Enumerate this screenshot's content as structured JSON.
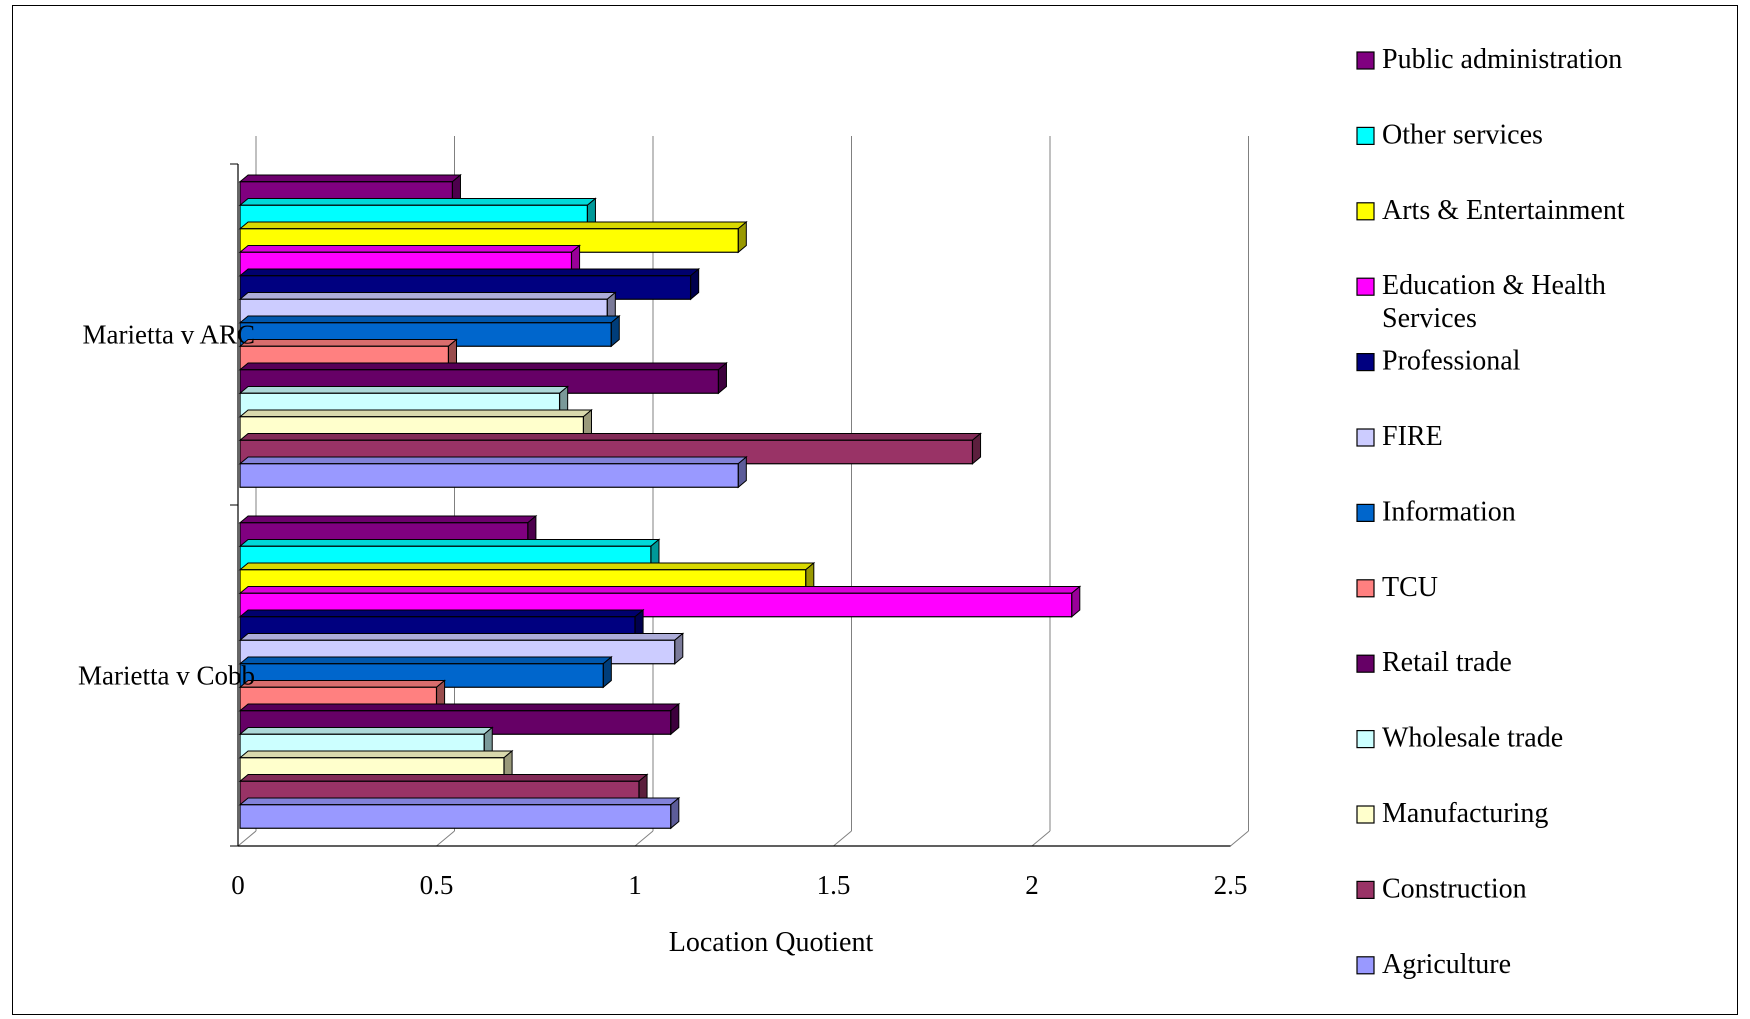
{
  "chart_data": {
    "type": "bar",
    "orientation": "horizontal",
    "style": "3d-clustered",
    "title": "",
    "xlabel": "Location Quotient",
    "ylabel": "",
    "xlim": [
      0,
      2.5
    ],
    "x_ticks": [
      "0",
      "0.5",
      "1",
      "1.5",
      "2",
      "2.5"
    ],
    "grid": true,
    "legend_placement": "right",
    "categories": [
      "Marietta v ARC",
      "Marietta v Cobb"
    ],
    "series": [
      {
        "name": "Public administration",
        "color": "#800080",
        "values": [
          0.54,
          0.73
        ]
      },
      {
        "name": "Other services",
        "color": "#00FFFF",
        "values": [
          0.88,
          1.04
        ]
      },
      {
        "name": "Arts & Entertainment",
        "color": "#FFFF00",
        "values": [
          1.26,
          1.43
        ]
      },
      {
        "name": "Education & Health Services",
        "color": "#FF00FF",
        "values": [
          0.84,
          2.1
        ]
      },
      {
        "name": "Professional",
        "color": "#000080",
        "values": [
          1.14,
          1.0
        ]
      },
      {
        "name": "FIRE",
        "color": "#CCCCFF",
        "values": [
          0.93,
          1.1
        ]
      },
      {
        "name": "Information",
        "color": "#0066CC",
        "values": [
          0.94,
          0.92
        ]
      },
      {
        "name": "TCU",
        "color": "#FF8080",
        "values": [
          0.53,
          0.5
        ]
      },
      {
        "name": "Retail trade",
        "color": "#660066",
        "values": [
          1.21,
          1.09
        ]
      },
      {
        "name": "Wholesale trade",
        "color": "#CCFFFF",
        "values": [
          0.81,
          0.62
        ]
      },
      {
        "name": "Manufacturing",
        "color": "#FFFFCC",
        "values": [
          0.87,
          0.67
        ]
      },
      {
        "name": "Construction",
        "color": "#993366",
        "values": [
          1.85,
          1.01
        ]
      },
      {
        "name": "Agriculture",
        "color": "#9999FF",
        "values": [
          1.26,
          1.09
        ]
      }
    ]
  }
}
